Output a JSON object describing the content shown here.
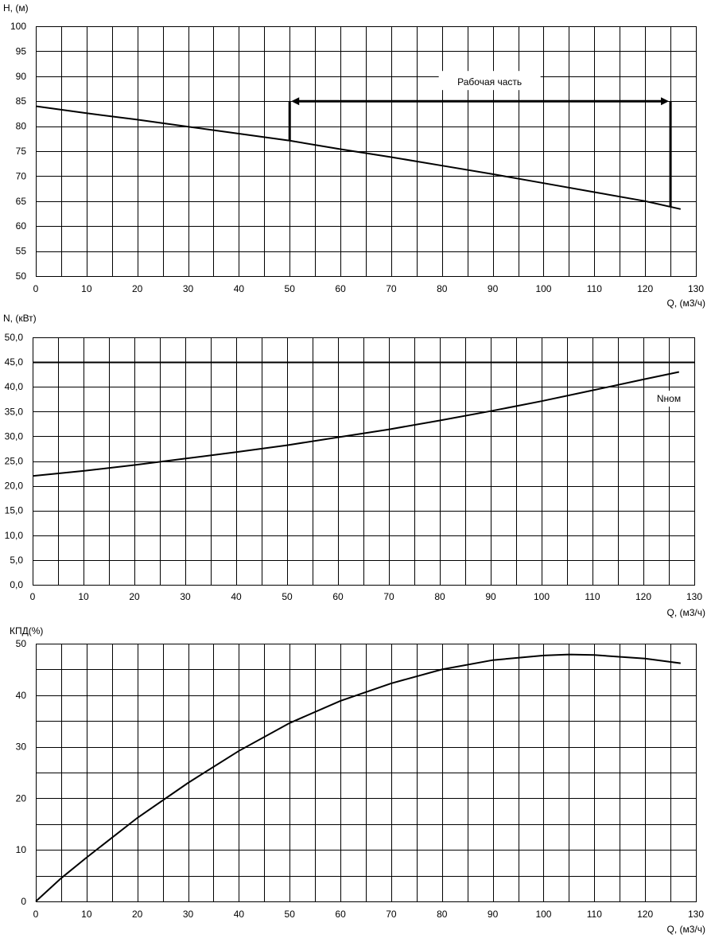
{
  "chart_data": [
    {
      "type": "line",
      "ylabel": "H, (м)",
      "xlabel": "Q, (м3/ч)",
      "xlim": [
        0,
        130
      ],
      "ylim": [
        50,
        100
      ],
      "x_ticks": [
        "0",
        "10",
        "20",
        "30",
        "40",
        "50",
        "60",
        "70",
        "80",
        "90",
        "100",
        "110",
        "120",
        "130"
      ],
      "y_ticks": [
        "50",
        "55",
        "60",
        "65",
        "70",
        "75",
        "80",
        "85",
        "90",
        "95",
        "100"
      ],
      "grid": true,
      "series": [
        {
          "x": [
            0,
            10,
            20,
            30,
            40,
            50,
            60,
            70,
            80,
            90,
            100,
            110,
            120,
            127
          ],
          "y": [
            84,
            82.6,
            81.3,
            79.9,
            78.5,
            77.1,
            75.4,
            73.8,
            72.1,
            70.4,
            68.6,
            66.8,
            65,
            63.4
          ]
        }
      ],
      "annotations": [
        {
          "text": "Рабочая часть",
          "x_start": 50,
          "x_end": 125,
          "y": 85
        }
      ]
    },
    {
      "type": "line",
      "ylabel": "N, (кВт)",
      "xlabel": "Q, (м3/ч)",
      "xlim": [
        0,
        130
      ],
      "ylim": [
        0,
        50
      ],
      "x_ticks": [
        "0",
        "10",
        "20",
        "30",
        "40",
        "50",
        "60",
        "70",
        "80",
        "90",
        "100",
        "110",
        "120",
        "130"
      ],
      "y_ticks": [
        "0,0",
        "5,0",
        "10,0",
        "15,0",
        "20,0",
        "25,0",
        "30,0",
        "35,0",
        "40,0",
        "45,0",
        "50,0"
      ],
      "grid": true,
      "series": [
        {
          "x": [
            0,
            10,
            20,
            30,
            40,
            50,
            60,
            70,
            80,
            90,
            100,
            110,
            120,
            127
          ],
          "y": [
            22,
            23,
            24.2,
            25.5,
            26.8,
            28.2,
            29.8,
            31.4,
            33.2,
            35.1,
            37.1,
            39.3,
            41.5,
            43
          ]
        }
      ],
      "reference_line": {
        "label": "Nном",
        "y": 45
      }
    },
    {
      "type": "line",
      "ylabel": "КПД(%)",
      "xlabel": "Q, (м3/ч)",
      "xlim": [
        0,
        130
      ],
      "ylim": [
        0,
        50
      ],
      "x_ticks": [
        "0",
        "10",
        "20",
        "30",
        "40",
        "50",
        "60",
        "70",
        "80",
        "90",
        "100",
        "110",
        "120",
        "130"
      ],
      "y_ticks": [
        "0",
        "10",
        "20",
        "30",
        "40",
        "50"
      ],
      "grid": true,
      "series": [
        {
          "x": [
            0,
            5,
            10,
            20,
            30,
            40,
            50,
            60,
            70,
            80,
            90,
            100,
            105,
            110,
            120,
            127
          ],
          "y": [
            0,
            4.5,
            8.5,
            16.2,
            23,
            29.2,
            34.6,
            38.9,
            42.3,
            45,
            46.8,
            47.7,
            47.9,
            47.8,
            47.1,
            46.2
          ]
        }
      ]
    }
  ]
}
